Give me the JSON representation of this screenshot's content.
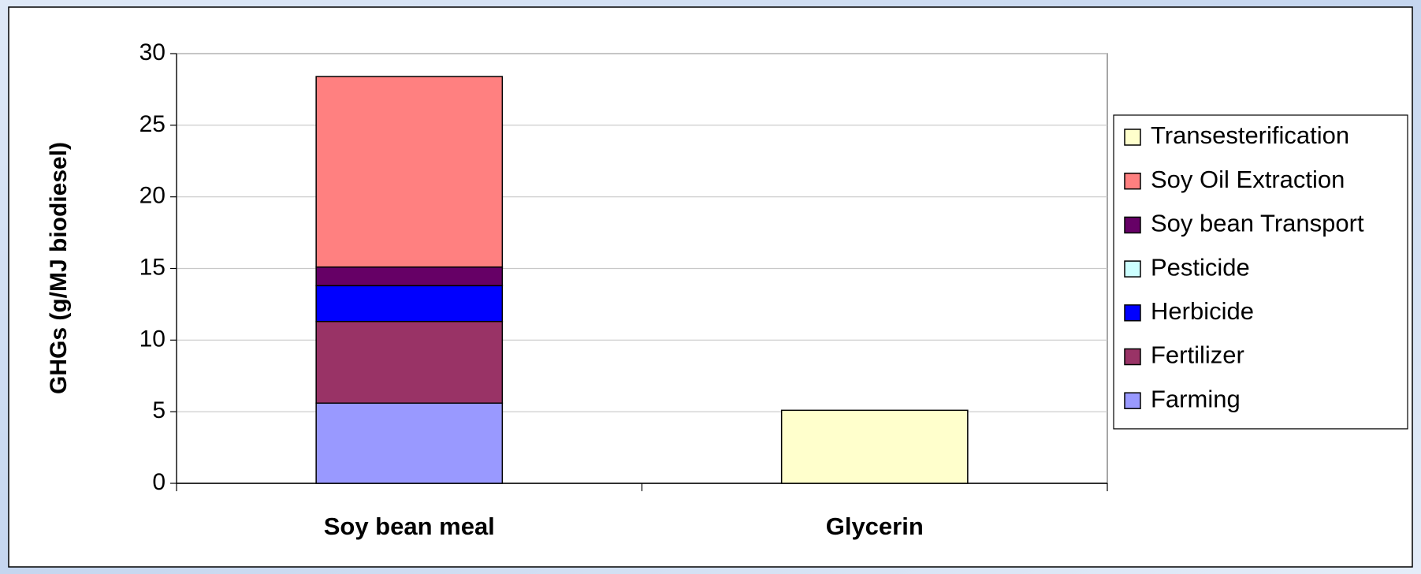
{
  "chart_data": {
    "type": "stacked_bar",
    "y_label": "GHGs (g/MJ biodiesel)",
    "categories": [
      "Soy bean meal",
      "Glycerin"
    ],
    "series": [
      {
        "name": "Farming",
        "color": "#9999ff",
        "values": [
          5.6,
          0
        ]
      },
      {
        "name": "Fertilizer",
        "color": "#993366",
        "values": [
          5.7,
          0
        ]
      },
      {
        "name": "Herbicide",
        "color": "#0000ff",
        "values": [
          2.5,
          0
        ]
      },
      {
        "name": "Pesticide",
        "color": "#ccffff",
        "values": [
          0,
          0
        ]
      },
      {
        "name": "Soy bean Transport",
        "color": "#660066",
        "values": [
          1.3,
          0
        ]
      },
      {
        "name": "Soy Oil Extraction",
        "color": "#ff8080",
        "values": [
          13.3,
          0
        ]
      },
      {
        "name": "Transesterification",
        "color": "#ffffcc",
        "values": [
          0,
          5.1
        ]
      }
    ],
    "ylim": [
      0,
      30
    ],
    "yticks": [
      0,
      5,
      10,
      15,
      20,
      25,
      30
    ],
    "grid": true,
    "legend": "right"
  }
}
